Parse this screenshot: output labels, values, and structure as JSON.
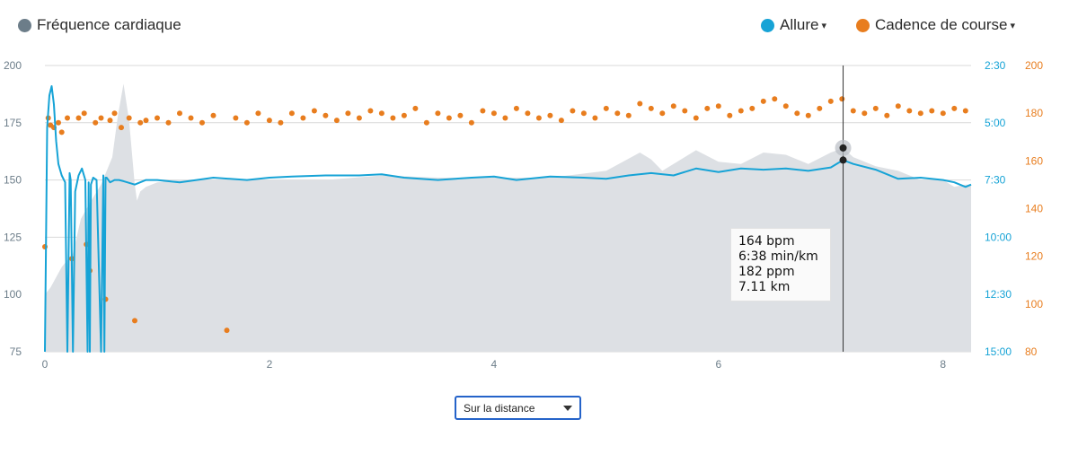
{
  "legend": {
    "hr": {
      "label": "Fréquence cardiaque",
      "color": "#6c7d89"
    },
    "pace": {
      "label": "Allure",
      "color": "#16a3d6",
      "caret": "▾"
    },
    "cadence": {
      "label": "Cadence de course",
      "color": "#e87d1e",
      "caret": "▾"
    }
  },
  "tooltip": {
    "hr": "164 bpm",
    "pace": "6:38 min/km",
    "cadence": "182 ppm",
    "distance": "7.11 km"
  },
  "selector": {
    "value": "Sur la distance"
  },
  "chart_data": {
    "type": "line",
    "x_axis": {
      "ticks": [
        "0",
        "2",
        "4",
        "6",
        "8"
      ],
      "range": [
        0,
        8.25
      ]
    },
    "y_left": {
      "name": "Fréquence cardiaque",
      "ticks": [
        "200",
        "175",
        "150",
        "125",
        "100",
        "75"
      ],
      "range": [
        75,
        200
      ]
    },
    "y_right_pace": {
      "name": "Allure",
      "ticks": [
        "2:30",
        "5:00",
        "7:30",
        "10:00",
        "12:30",
        "15:00"
      ],
      "range_min_per_km": [
        2.5,
        15
      ]
    },
    "y_right_cadence": {
      "name": "Cadence de course",
      "ticks": [
        "200",
        "180",
        "160",
        "140",
        "120",
        "100",
        "80"
      ],
      "range": [
        80,
        200
      ]
    },
    "grid": true,
    "cursor_x": 7.11,
    "series": [
      {
        "name": "Fréquence cardiaque",
        "kind": "area",
        "color": "#dde0e4",
        "x": [
          0,
          0.05,
          0.15,
          0.25,
          0.32,
          0.4,
          0.5,
          0.6,
          0.65,
          0.7,
          0.75,
          0.8,
          0.82,
          0.85,
          0.9,
          1.0,
          1.2,
          1.5,
          2.0,
          2.5,
          3.0,
          3.5,
          4.0,
          4.5,
          5.0,
          5.3,
          5.4,
          5.5,
          5.8,
          6.0,
          6.2,
          6.4,
          6.6,
          6.8,
          7.0,
          7.11,
          7.2,
          7.4,
          7.6,
          7.8,
          8.0,
          8.1,
          8.2,
          8.25
        ],
        "y": [
          100,
          103,
          112,
          118,
          133,
          140,
          148,
          160,
          178,
          192,
          176,
          148,
          141,
          145,
          147,
          149,
          150,
          150,
          150,
          150,
          152,
          151,
          151,
          151,
          154,
          162,
          159,
          154,
          163,
          158,
          157,
          162,
          161,
          157,
          162,
          164,
          160,
          156,
          154,
          150,
          150,
          147,
          148,
          148
        ]
      },
      {
        "name": "Allure",
        "kind": "line",
        "color": "#16a3d6",
        "unit": "min/km",
        "x": [
          0,
          0.02,
          0.04,
          0.06,
          0.08,
          0.1,
          0.12,
          0.15,
          0.18,
          0.2,
          0.22,
          0.23,
          0.25,
          0.27,
          0.3,
          0.33,
          0.36,
          0.38,
          0.39,
          0.4,
          0.41,
          0.43,
          0.46,
          0.5,
          0.52,
          0.53,
          0.54,
          0.55,
          0.58,
          0.62,
          0.66,
          0.7,
          0.8,
          0.9,
          1.0,
          1.2,
          1.5,
          1.8,
          2.0,
          2.2,
          2.5,
          2.8,
          3.0,
          3.2,
          3.5,
          3.8,
          4.0,
          4.2,
          4.5,
          4.8,
          5.0,
          5.2,
          5.4,
          5.6,
          5.8,
          6.0,
          6.2,
          6.4,
          6.6,
          6.8,
          7.0,
          7.11,
          7.2,
          7.4,
          7.6,
          7.8,
          8.0,
          8.1,
          8.2,
          8.25
        ],
        "y": [
          15,
          5.2,
          3.8,
          3.4,
          4.2,
          5.8,
          6.8,
          7.3,
          7.6,
          15,
          7.2,
          7.5,
          15,
          8.0,
          7.3,
          7.0,
          7.5,
          15,
          7.6,
          15,
          7.7,
          7.4,
          7.5,
          15,
          7.3,
          15,
          7.4,
          7.4,
          7.6,
          7.5,
          7.5,
          7.55,
          7.7,
          7.5,
          7.5,
          7.6,
          7.4,
          7.5,
          7.4,
          7.35,
          7.3,
          7.3,
          7.25,
          7.4,
          7.5,
          7.4,
          7.35,
          7.5,
          7.35,
          7.4,
          7.45,
          7.3,
          7.2,
          7.3,
          7.0,
          7.15,
          7.0,
          7.05,
          7.0,
          7.1,
          6.95,
          6.63,
          6.8,
          7.05,
          7.45,
          7.4,
          7.5,
          7.6,
          7.8,
          7.7
        ]
      },
      {
        "name": "Cadence de course",
        "kind": "scatter",
        "color": "#e87d1e",
        "unit": "ppm",
        "x": [
          0,
          0.03,
          0.05,
          0.08,
          0.12,
          0.15,
          0.2,
          0.24,
          0.3,
          0.35,
          0.37,
          0.4,
          0.45,
          0.5,
          0.54,
          0.58,
          0.62,
          0.68,
          0.75,
          0.8,
          0.85,
          0.9,
          1.0,
          1.1,
          1.2,
          1.3,
          1.4,
          1.5,
          1.62,
          1.7,
          1.8,
          1.9,
          2.0,
          2.1,
          2.2,
          2.3,
          2.4,
          2.5,
          2.6,
          2.7,
          2.8,
          2.9,
          3.0,
          3.1,
          3.2,
          3.3,
          3.4,
          3.5,
          3.6,
          3.7,
          3.8,
          3.9,
          4.0,
          4.1,
          4.2,
          4.3,
          4.4,
          4.5,
          4.6,
          4.7,
          4.8,
          4.9,
          5.0,
          5.1,
          5.2,
          5.3,
          5.4,
          5.5,
          5.6,
          5.7,
          5.8,
          5.9,
          6.0,
          6.1,
          6.2,
          6.3,
          6.4,
          6.5,
          6.6,
          6.7,
          6.8,
          6.9,
          7.0,
          7.1,
          7.2,
          7.3,
          7.4,
          7.5,
          7.6,
          7.7,
          7.8,
          7.9,
          8.0,
          8.1,
          8.2
        ],
        "y": [
          124,
          178,
          175,
          174,
          176,
          172,
          178,
          119,
          178,
          180,
          125,
          114,
          176,
          178,
          102,
          177,
          180,
          174,
          178,
          93,
          176,
          177,
          178,
          176,
          180,
          178,
          176,
          179,
          89,
          178,
          176,
          180,
          177,
          176,
          180,
          178,
          181,
          179,
          177,
          180,
          178,
          181,
          180,
          178,
          179,
          182,
          176,
          180,
          178,
          179,
          176,
          181,
          180,
          178,
          182,
          180,
          178,
          179,
          177,
          181,
          180,
          178,
          182,
          180,
          179,
          184,
          182,
          180,
          183,
          181,
          178,
          182,
          183,
          179,
          181,
          182,
          185,
          186,
          183,
          180,
          179,
          182,
          185,
          186,
          181,
          180,
          182,
          179,
          183,
          181,
          180,
          181,
          180,
          182,
          181
        ]
      }
    ]
  }
}
